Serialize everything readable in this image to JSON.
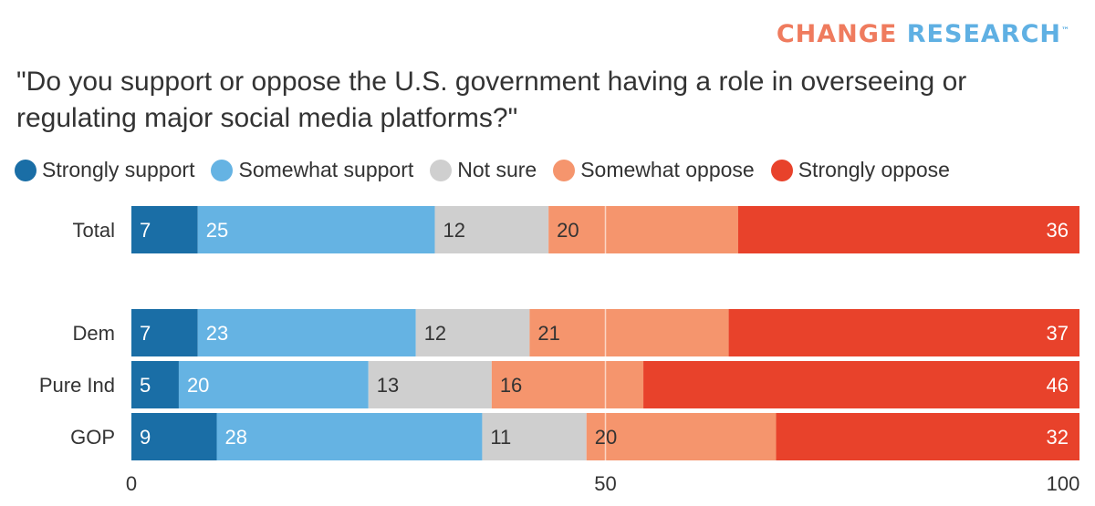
{
  "brand": {
    "part1": "CHANGE",
    "part2": "RESEARCH",
    "tm": "™"
  },
  "chart_data": {
    "type": "bar",
    "orientation": "horizontal",
    "stacked": true,
    "title": "\"Do you support or oppose the U.S. government having a role in overseeing or regulating major social media platforms?\"",
    "categories": [
      "Total",
      "Dem",
      "Pure Ind",
      "GOP"
    ],
    "series": [
      {
        "name": "Strongly support",
        "color": "#1a6ea6",
        "label_color": "#ffffff",
        "values": [
          7,
          7,
          5,
          9
        ]
      },
      {
        "name": "Somewhat support",
        "color": "#65b3e3",
        "label_color": "#ffffff",
        "values": [
          25,
          23,
          20,
          28
        ]
      },
      {
        "name": "Not sure",
        "color": "#cfcfcf",
        "label_color": "#333333",
        "values": [
          12,
          12,
          13,
          11
        ]
      },
      {
        "name": "Somewhat oppose",
        "color": "#f5956d",
        "label_color": "#333333",
        "values": [
          20,
          21,
          16,
          20
        ]
      },
      {
        "name": "Strongly oppose",
        "color": "#e8422b",
        "label_color": "#ffffff",
        "values": [
          36,
          37,
          46,
          32
        ]
      }
    ],
    "xlim": [
      0,
      100
    ],
    "xticks": [
      0,
      50,
      100
    ],
    "reference_line": 50,
    "legend_position": "top-left",
    "grid": false
  }
}
